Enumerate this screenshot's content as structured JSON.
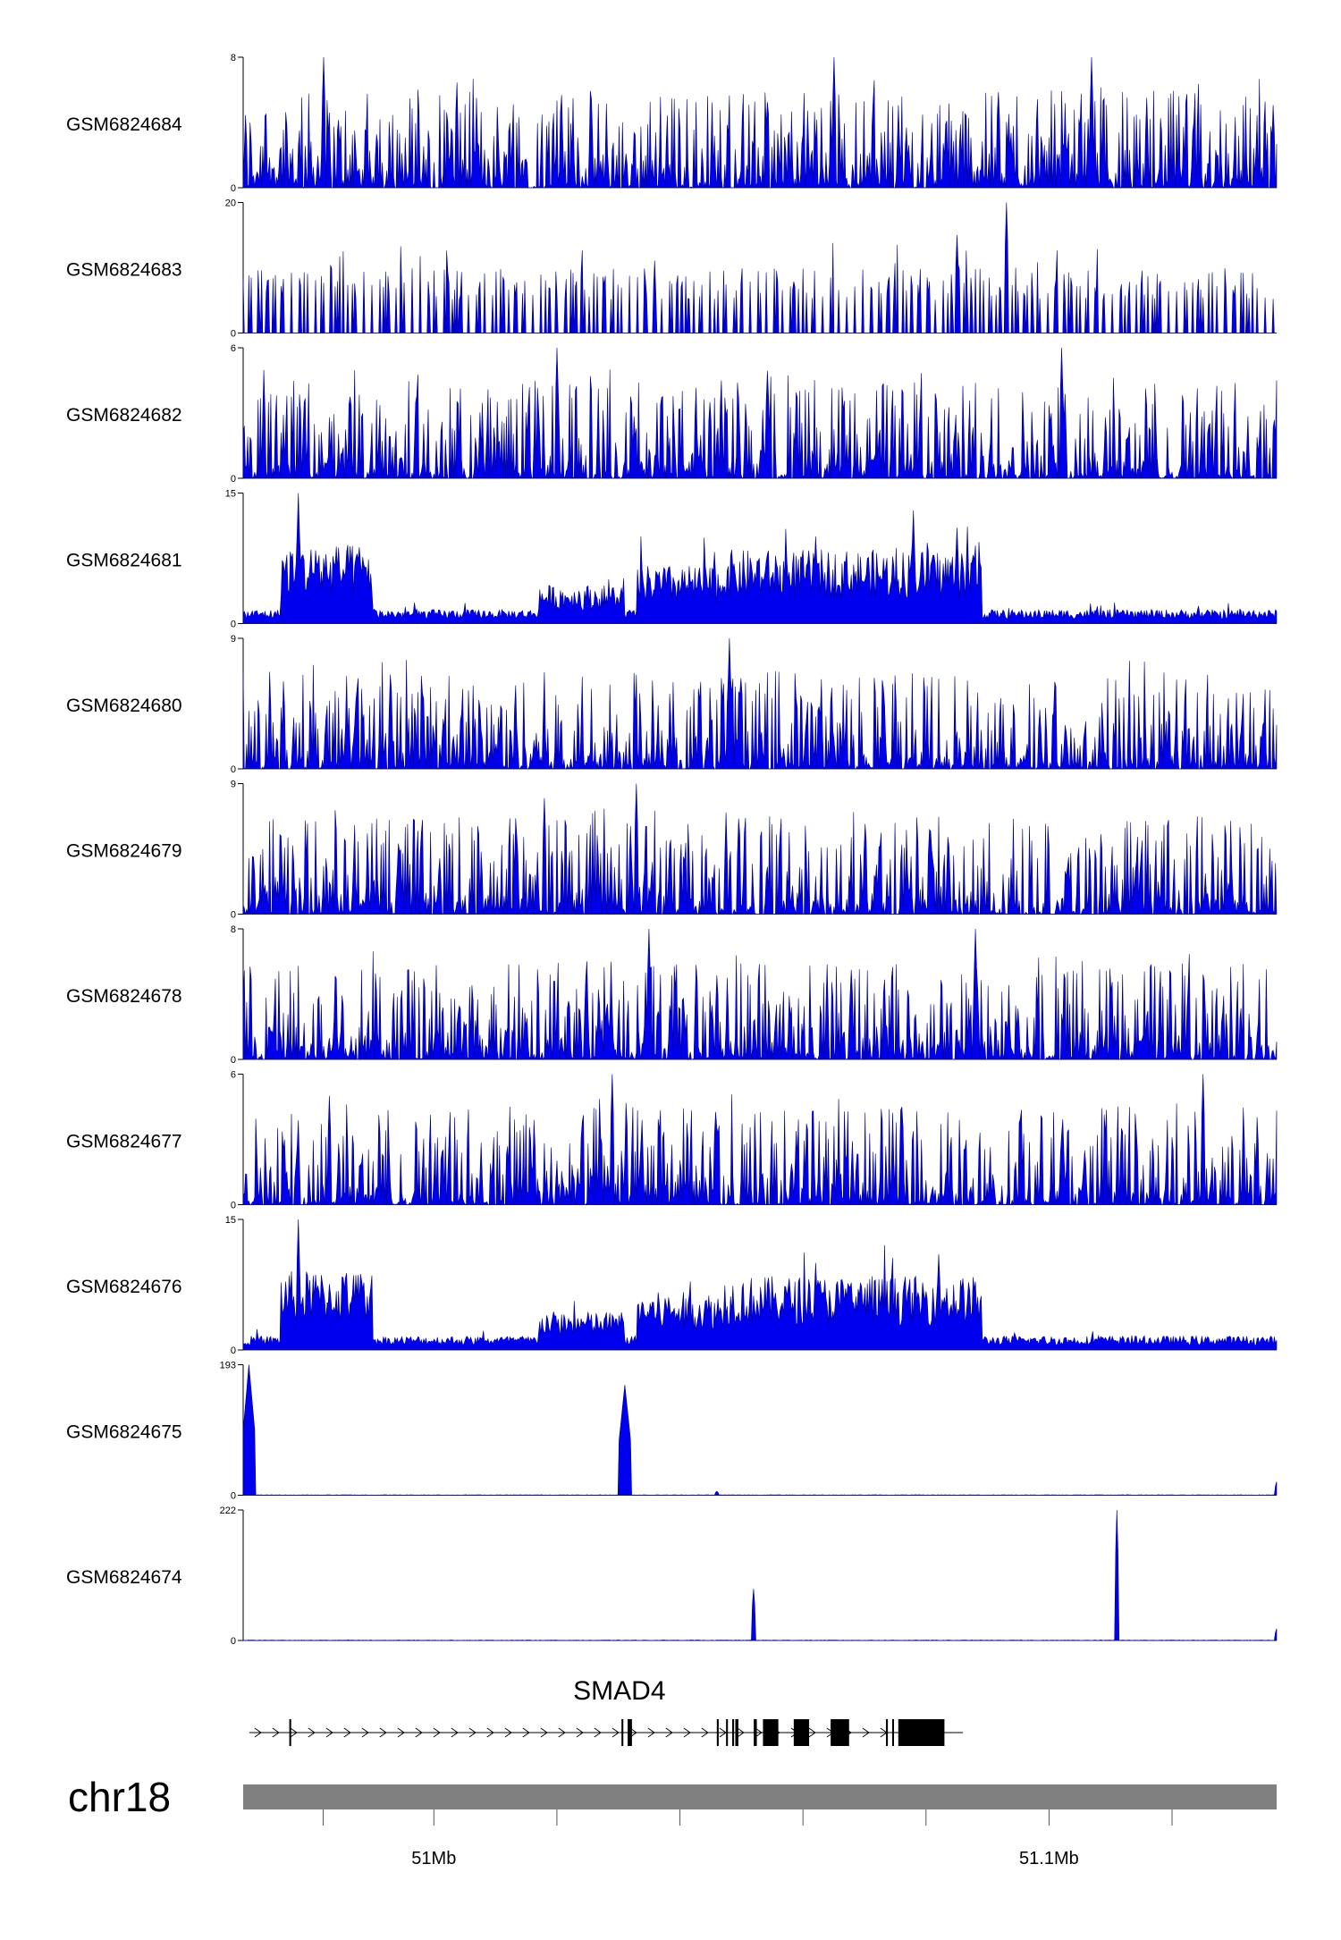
{
  "chart_data": {
    "type": "area",
    "title": "",
    "chromosome": "chr18",
    "x_range_mb": [
      50.969,
      51.137
    ],
    "x_ticks_mb": [
      50.982,
      51.0,
      51.02,
      51.04,
      51.06,
      51.08,
      51.1,
      51.12
    ],
    "x_tick_labels": [
      {
        "pos_mb": 51.0,
        "label": "51Mb"
      },
      {
        "pos_mb": 51.1,
        "label": "51.1Mb"
      }
    ],
    "fill_color": "#0000ee",
    "tracks": [
      {
        "name": "GSM6824684",
        "ymax": 8,
        "ylabel_max": "8",
        "ylabel_min": "0",
        "profile": "noise",
        "peaks": [
          [
            50.982,
            8
          ],
          [
            51.065,
            8
          ],
          [
            51.107,
            8
          ]
        ]
      },
      {
        "name": "GSM6824683",
        "ymax": 20,
        "ylabel_max": "20",
        "ylabel_min": "0",
        "profile": "sparse",
        "peaks": [
          [
            51.093,
            20
          ],
          [
            51.085,
            15
          ]
        ]
      },
      {
        "name": "GSM6824682",
        "ymax": 6,
        "ylabel_max": "6",
        "ylabel_min": "0",
        "profile": "noise",
        "peaks": [
          [
            51.02,
            6
          ],
          [
            51.102,
            6
          ]
        ]
      },
      {
        "name": "GSM6824681",
        "ymax": 15,
        "ylabel_max": "15",
        "ylabel_min": "0",
        "profile": "broad",
        "peaks": [
          [
            50.978,
            15
          ],
          [
            51.078,
            13
          ],
          [
            51.085,
            11
          ],
          [
            51.062,
            10
          ]
        ]
      },
      {
        "name": "GSM6824680",
        "ymax": 9,
        "ylabel_max": "9",
        "ylabel_min": "0",
        "profile": "noise",
        "peaks": [
          [
            51.048,
            9
          ]
        ]
      },
      {
        "name": "GSM6824679",
        "ymax": 9,
        "ylabel_max": "9",
        "ylabel_min": "0",
        "profile": "noise",
        "peaks": [
          [
            51.033,
            9
          ],
          [
            51.018,
            8
          ]
        ]
      },
      {
        "name": "GSM6824678",
        "ymax": 8,
        "ylabel_max": "8",
        "ylabel_min": "0",
        "profile": "noise",
        "peaks": [
          [
            51.035,
            8
          ],
          [
            51.088,
            8
          ]
        ]
      },
      {
        "name": "GSM6824677",
        "ymax": 6,
        "ylabel_max": "6",
        "ylabel_min": "0",
        "profile": "noise",
        "peaks": [
          [
            51.029,
            6
          ],
          [
            51.125,
            6
          ],
          [
            50.983,
            5
          ]
        ]
      },
      {
        "name": "GSM6824676",
        "ymax": 15,
        "ylabel_max": "15",
        "ylabel_min": "0",
        "profile": "broad",
        "peaks": [
          [
            50.978,
            15
          ],
          [
            51.082,
            11
          ],
          [
            51.062,
            10
          ]
        ]
      },
      {
        "name": "GSM6824675",
        "ymax": 193,
        "ylabel_max": "193",
        "ylabel_min": "0",
        "profile": "flat",
        "peaks": [
          [
            50.97,
            193
          ],
          [
            51.031,
            163
          ],
          [
            51.137,
            20
          ],
          [
            51.046,
            6
          ]
        ]
      },
      {
        "name": "GSM6824674",
        "ymax": 222,
        "ylabel_max": "222",
        "ylabel_min": "0",
        "profile": "flat",
        "peaks": [
          [
            51.111,
            222
          ],
          [
            51.052,
            88
          ],
          [
            51.137,
            20
          ]
        ]
      }
    ],
    "gene": {
      "name": "SMAD4",
      "start_mb": 50.97,
      "end_mb": 51.086,
      "strand": "+",
      "exons_mb": [
        [
          50.9765,
          50.9768
        ],
        [
          51.0305,
          51.0308
        ],
        [
          51.0315,
          51.0322
        ],
        [
          51.046,
          51.0463
        ],
        [
          51.0475,
          51.0478
        ],
        [
          51.0485,
          51.0488
        ],
        [
          51.049,
          51.0495
        ],
        [
          51.052,
          51.0525
        ],
        [
          51.0535,
          51.056
        ],
        [
          51.0585,
          51.061
        ],
        [
          51.0645,
          51.0675
        ],
        [
          51.0735,
          51.0738
        ],
        [
          51.0745,
          51.0748
        ],
        [
          51.0755,
          51.083
        ]
      ]
    }
  }
}
